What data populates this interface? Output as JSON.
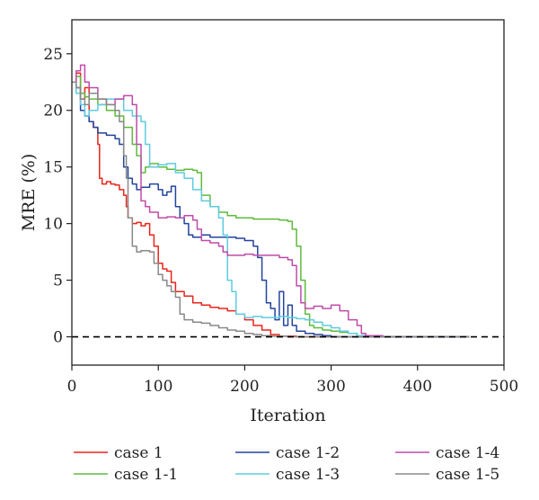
{
  "chart_data": {
    "type": "line",
    "title": "",
    "xlabel": "Iteration",
    "ylabel": "MRE (%)",
    "xlim": [
      0,
      500
    ],
    "ylim": [
      -2.5,
      28
    ],
    "x_ticks": [
      0,
      100,
      200,
      300,
      400,
      500
    ],
    "y_ticks": [
      0,
      5,
      10,
      15,
      20,
      25
    ],
    "grid": false,
    "legend_position": "bottom",
    "reference_line": {
      "y": 0,
      "style": "dashed",
      "color": "#000000"
    },
    "series": [
      {
        "name": "case 1",
        "color": "#e8251b",
        "points": [
          [
            0,
            22.5
          ],
          [
            5,
            23.3
          ],
          [
            10,
            21.0
          ],
          [
            15,
            22.0
          ],
          [
            20,
            19.0
          ],
          [
            25,
            18.5
          ],
          [
            30,
            17.0
          ],
          [
            32,
            14.0
          ],
          [
            35,
            13.5
          ],
          [
            40,
            13.7
          ],
          [
            45,
            13.5
          ],
          [
            50,
            13.4
          ],
          [
            55,
            13.0
          ],
          [
            60,
            12.5
          ],
          [
            63,
            11.5
          ],
          [
            65,
            10.5
          ],
          [
            70,
            10.0
          ],
          [
            75,
            10.1
          ],
          [
            80,
            9.8
          ],
          [
            85,
            10.0
          ],
          [
            90,
            9.0
          ],
          [
            95,
            8.0
          ],
          [
            100,
            6.5
          ],
          [
            105,
            6.0
          ],
          [
            110,
            5.8
          ],
          [
            115,
            4.8
          ],
          [
            120,
            4.0
          ],
          [
            130,
            3.6
          ],
          [
            140,
            3.0
          ],
          [
            150,
            2.8
          ],
          [
            160,
            2.6
          ],
          [
            170,
            2.5
          ],
          [
            180,
            2.3
          ],
          [
            190,
            2.0
          ],
          [
            200,
            1.5
          ],
          [
            210,
            1.0
          ],
          [
            220,
            0.6
          ],
          [
            230,
            0.2
          ],
          [
            240,
            0.05
          ],
          [
            260,
            0.0
          ],
          [
            300,
            0.0
          ],
          [
            400,
            0.0
          ],
          [
            460,
            0.0
          ]
        ]
      },
      {
        "name": "case 1-1",
        "color": "#5dbb3a",
        "points": [
          [
            0,
            22.5
          ],
          [
            5,
            23.0
          ],
          [
            10,
            21.5
          ],
          [
            15,
            21.2
          ],
          [
            20,
            21.0
          ],
          [
            30,
            20.5
          ],
          [
            40,
            20.0
          ],
          [
            50,
            19.5
          ],
          [
            60,
            18.5
          ],
          [
            70,
            17.0
          ],
          [
            75,
            16.0
          ],
          [
            80,
            14.5
          ],
          [
            85,
            15.0
          ],
          [
            90,
            15.3
          ],
          [
            100,
            15.0
          ],
          [
            110,
            14.8
          ],
          [
            120,
            14.7
          ],
          [
            130,
            14.8
          ],
          [
            140,
            14.7
          ],
          [
            145,
            14.5
          ],
          [
            150,
            12.5
          ],
          [
            160,
            11.5
          ],
          [
            170,
            11.0
          ],
          [
            180,
            10.7
          ],
          [
            190,
            10.5
          ],
          [
            200,
            10.5
          ],
          [
            210,
            10.4
          ],
          [
            220,
            10.4
          ],
          [
            230,
            10.4
          ],
          [
            240,
            10.3
          ],
          [
            250,
            10.2
          ],
          [
            255,
            9.5
          ],
          [
            260,
            8.0
          ],
          [
            265,
            5.0
          ],
          [
            270,
            2.0
          ],
          [
            275,
            1.0
          ],
          [
            280,
            0.8
          ],
          [
            290,
            0.6
          ],
          [
            300,
            0.5
          ],
          [
            310,
            0.4
          ],
          [
            320,
            0.3
          ],
          [
            330,
            0.1
          ],
          [
            340,
            0.0
          ],
          [
            400,
            0.0
          ],
          [
            460,
            0.0
          ]
        ]
      },
      {
        "name": "case 1-2",
        "color": "#23449b",
        "points": [
          [
            0,
            22.5
          ],
          [
            5,
            22.0
          ],
          [
            10,
            20.0
          ],
          [
            15,
            19.5
          ],
          [
            20,
            19.0
          ],
          [
            25,
            18.5
          ],
          [
            30,
            18.0
          ],
          [
            40,
            17.8
          ],
          [
            50,
            17.5
          ],
          [
            55,
            17.0
          ],
          [
            60,
            15.0
          ],
          [
            65,
            14.0
          ],
          [
            70,
            13.5
          ],
          [
            75,
            13.0
          ],
          [
            80,
            13.2
          ],
          [
            90,
            13.5
          ],
          [
            100,
            13.0
          ],
          [
            105,
            12.5
          ],
          [
            110,
            12.8
          ],
          [
            115,
            13.3
          ],
          [
            120,
            11.5
          ],
          [
            125,
            10.5
          ],
          [
            130,
            10.0
          ],
          [
            135,
            9.0
          ],
          [
            140,
            8.8
          ],
          [
            150,
            9.0
          ],
          [
            160,
            8.8
          ],
          [
            170,
            8.8
          ],
          [
            180,
            8.8
          ],
          [
            190,
            8.7
          ],
          [
            200,
            8.5
          ],
          [
            210,
            8.0
          ],
          [
            215,
            7.0
          ],
          [
            220,
            5.0
          ],
          [
            225,
            3.0
          ],
          [
            230,
            2.5
          ],
          [
            235,
            1.5
          ],
          [
            240,
            4.0
          ],
          [
            245,
            1.0
          ],
          [
            250,
            2.8
          ],
          [
            255,
            1.0
          ],
          [
            260,
            0.5
          ],
          [
            270,
            0.3
          ],
          [
            280,
            0.2
          ],
          [
            290,
            0.1
          ],
          [
            300,
            0.0
          ],
          [
            400,
            0.0
          ],
          [
            460,
            0.0
          ]
        ]
      },
      {
        "name": "case 1-3",
        "color": "#5ecbe0",
        "points": [
          [
            0,
            22.5
          ],
          [
            5,
            21.5
          ],
          [
            10,
            20.5
          ],
          [
            15,
            19.5
          ],
          [
            20,
            20.0
          ],
          [
            30,
            20.5
          ],
          [
            40,
            21.0
          ],
          [
            50,
            21.0
          ],
          [
            60,
            20.0
          ],
          [
            70,
            19.5
          ],
          [
            80,
            19.0
          ],
          [
            85,
            17.0
          ],
          [
            90,
            15.0
          ],
          [
            100,
            15.2
          ],
          [
            110,
            15.3
          ],
          [
            120,
            14.5
          ],
          [
            130,
            14.0
          ],
          [
            140,
            13.0
          ],
          [
            150,
            12.0
          ],
          [
            160,
            11.5
          ],
          [
            170,
            10.5
          ],
          [
            175,
            9.0
          ],
          [
            180,
            5.0
          ],
          [
            185,
            4.0
          ],
          [
            190,
            2.0
          ],
          [
            200,
            1.7
          ],
          [
            210,
            1.8
          ],
          [
            220,
            1.7
          ],
          [
            230,
            1.7
          ],
          [
            240,
            1.8
          ],
          [
            250,
            1.7
          ],
          [
            260,
            1.6
          ],
          [
            270,
            1.5
          ],
          [
            280,
            1.3
          ],
          [
            290,
            1.0
          ],
          [
            300,
            0.8
          ],
          [
            310,
            0.5
          ],
          [
            320,
            0.3
          ],
          [
            330,
            0.1
          ],
          [
            340,
            0.0
          ],
          [
            400,
            0.0
          ],
          [
            460,
            0.0
          ]
        ]
      },
      {
        "name": "case 1-4",
        "color": "#c04aa9",
        "points": [
          [
            0,
            22.5
          ],
          [
            5,
            23.5
          ],
          [
            10,
            24.0
          ],
          [
            15,
            22.5
          ],
          [
            20,
            22.0
          ],
          [
            30,
            21.0
          ],
          [
            40,
            20.5
          ],
          [
            50,
            21.0
          ],
          [
            60,
            21.3
          ],
          [
            70,
            20.5
          ],
          [
            75,
            17.0
          ],
          [
            80,
            12.0
          ],
          [
            85,
            11.5
          ],
          [
            90,
            11.0
          ],
          [
            100,
            10.5
          ],
          [
            110,
            10.6
          ],
          [
            120,
            10.5
          ],
          [
            130,
            10.7
          ],
          [
            140,
            10.3
          ],
          [
            145,
            9.5
          ],
          [
            150,
            8.5
          ],
          [
            160,
            8.3
          ],
          [
            170,
            8.0
          ],
          [
            175,
            7.5
          ],
          [
            180,
            7.2
          ],
          [
            190,
            7.2
          ],
          [
            200,
            7.3
          ],
          [
            210,
            7.2
          ],
          [
            220,
            7.2
          ],
          [
            230,
            7.2
          ],
          [
            240,
            7.0
          ],
          [
            250,
            6.8
          ],
          [
            255,
            6.3
          ],
          [
            260,
            4.5
          ],
          [
            265,
            3.0
          ],
          [
            270,
            2.5
          ],
          [
            280,
            2.7
          ],
          [
            290,
            2.5
          ],
          [
            300,
            2.8
          ],
          [
            310,
            2.3
          ],
          [
            320,
            1.5
          ],
          [
            330,
            1.0
          ],
          [
            335,
            0.3
          ],
          [
            340,
            0.1
          ],
          [
            360,
            0.0
          ],
          [
            400,
            0.0
          ],
          [
            460,
            0.0
          ]
        ]
      },
      {
        "name": "case 1-5",
        "color": "#888888",
        "points": [
          [
            0,
            22.5
          ],
          [
            5,
            22.0
          ],
          [
            10,
            21.0
          ],
          [
            15,
            20.5
          ],
          [
            20,
            21.5
          ],
          [
            30,
            21.0
          ],
          [
            40,
            20.5
          ],
          [
            50,
            20.0
          ],
          [
            55,
            19.0
          ],
          [
            60,
            16.0
          ],
          [
            63,
            14.0
          ],
          [
            65,
            10.5
          ],
          [
            70,
            8.0
          ],
          [
            75,
            7.5
          ],
          [
            80,
            7.6
          ],
          [
            90,
            7.5
          ],
          [
            95,
            6.5
          ],
          [
            100,
            5.5
          ],
          [
            105,
            5.0
          ],
          [
            110,
            4.5
          ],
          [
            115,
            4.0
          ],
          [
            120,
            3.5
          ],
          [
            125,
            2.0
          ],
          [
            130,
            1.5
          ],
          [
            140,
            1.3
          ],
          [
            150,
            1.2
          ],
          [
            160,
            1.0
          ],
          [
            170,
            0.8
          ],
          [
            180,
            0.6
          ],
          [
            190,
            0.5
          ],
          [
            200,
            0.3
          ],
          [
            210,
            0.2
          ],
          [
            220,
            0.1
          ],
          [
            230,
            0.05
          ],
          [
            250,
            0.0
          ],
          [
            300,
            0.0
          ],
          [
            400,
            0.0
          ],
          [
            460,
            0.0
          ]
        ]
      }
    ]
  }
}
